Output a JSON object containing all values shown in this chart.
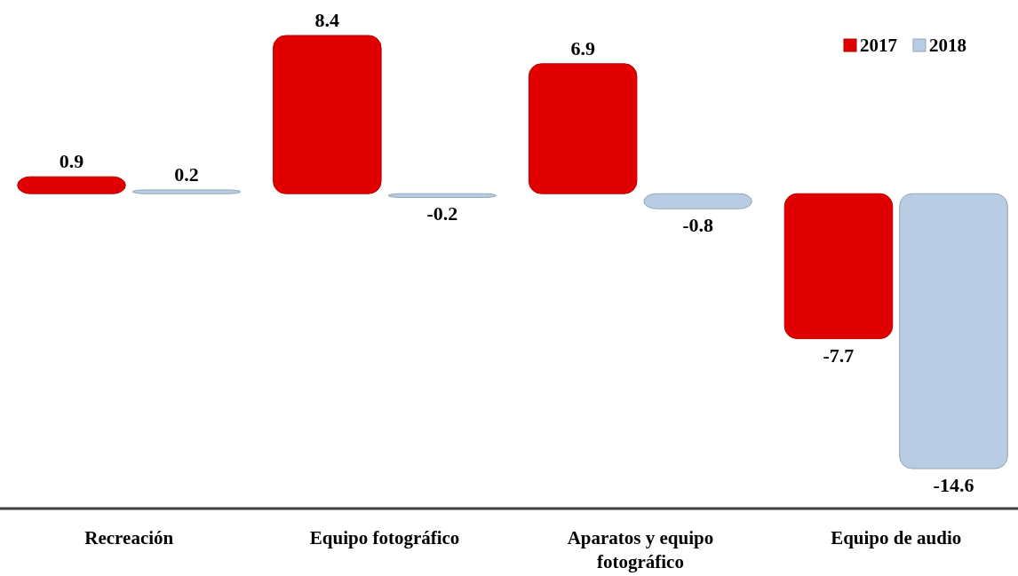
{
  "chart_data": {
    "type": "bar",
    "categories": [
      "Recreación",
      "Equipo fotográfico",
      "Aparatos y equipo fotográfico",
      "Equipo de audio"
    ],
    "series": [
      {
        "name": "2017",
        "color": "#e00000",
        "values": [
          0.9,
          8.4,
          6.9,
          -7.7
        ]
      },
      {
        "name": "2018",
        "color": "#b8cce4",
        "values": [
          0.2,
          -0.2,
          -0.8,
          -14.6
        ]
      }
    ],
    "data_labels": true,
    "legend": "top right"
  }
}
